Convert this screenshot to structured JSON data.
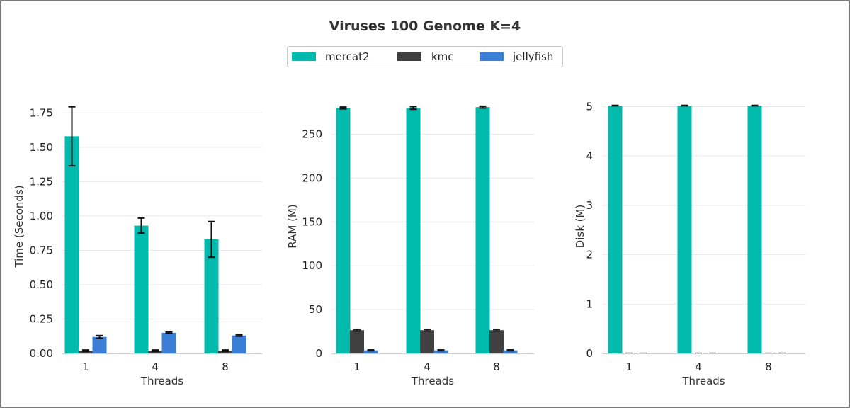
{
  "title": "Viruses 100 Genome K=4",
  "legend": [
    {
      "name": "mercat2",
      "color": "#00bbad"
    },
    {
      "name": "kmc",
      "color": "#404040"
    },
    {
      "name": "jellyfish",
      "color": "#3a7ed5"
    }
  ],
  "colors": {
    "grid": "#e9e9e9",
    "axis": "#cfcfcf",
    "error_bar": "#111111",
    "text": "#333333"
  },
  "chart_data": [
    {
      "type": "bar",
      "categories": [
        "1",
        "4",
        "8"
      ],
      "xlabel": "Threads",
      "ylabel": "Time (Seconds)",
      "ylim": [
        0,
        1.85
      ],
      "yticks": [
        "0.00",
        "0.25",
        "0.50",
        "0.75",
        "1.00",
        "1.25",
        "1.50",
        "1.75"
      ],
      "series": [
        {
          "name": "mercat2",
          "values": [
            1.58,
            0.93,
            0.83
          ],
          "errors": [
            0.215,
            0.055,
            0.13
          ]
        },
        {
          "name": "kmc",
          "values": [
            0.02,
            0.02,
            0.02
          ],
          "errors": [
            0.005,
            0.005,
            0.005
          ]
        },
        {
          "name": "jellyfish",
          "values": [
            0.12,
            0.15,
            0.13
          ],
          "errors": [
            0.01,
            0.005,
            0.005
          ]
        }
      ],
      "grid": true
    },
    {
      "type": "bar",
      "categories": [
        "1",
        "4",
        "8"
      ],
      "xlabel": "Threads",
      "ylabel": "RAM (M)",
      "ylim": [
        0,
        290
      ],
      "yticks": [
        "0",
        "50",
        "100",
        "150",
        "200",
        "250"
      ],
      "series": [
        {
          "name": "mercat2",
          "values": [
            280,
            280,
            281
          ],
          "errors": [
            1,
            1.5,
            1
          ]
        },
        {
          "name": "kmc",
          "values": [
            26.5,
            26.5,
            26.5
          ],
          "errors": [
            1,
            1,
            1
          ]
        },
        {
          "name": "jellyfish",
          "values": [
            3.5,
            3.5,
            3.5
          ],
          "errors": [
            0.5,
            0.5,
            0.5
          ]
        }
      ],
      "grid": true
    },
    {
      "type": "bar",
      "categories": [
        "1",
        "4",
        "8"
      ],
      "xlabel": "Threads",
      "ylabel": "Disk (M)",
      "ylim": [
        0,
        5.15
      ],
      "yticks": [
        "0",
        "1",
        "2",
        "3",
        "4",
        "5"
      ],
      "series": [
        {
          "name": "mercat2",
          "values": [
            5.02,
            5.02,
            5.02
          ],
          "errors": [
            0.005,
            0.005,
            0.005
          ]
        },
        {
          "name": "kmc",
          "values": [
            0.0,
            0.0,
            0.0
          ],
          "errors": [
            0.002,
            0.002,
            0.002
          ]
        },
        {
          "name": "jellyfish",
          "values": [
            0.0,
            0.0,
            0.0
          ],
          "errors": [
            0.002,
            0.002,
            0.002
          ]
        }
      ],
      "grid": true
    }
  ]
}
